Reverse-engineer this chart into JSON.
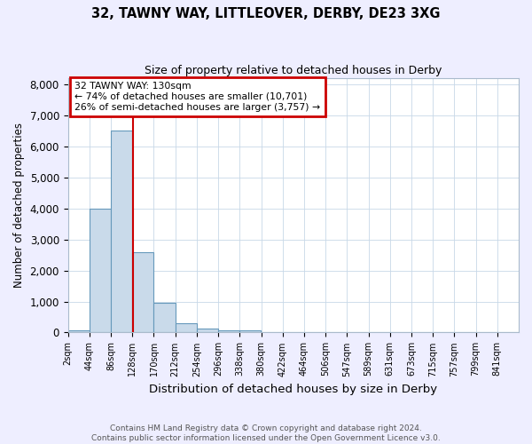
{
  "title1": "32, TAWNY WAY, LITTLEOVER, DERBY, DE23 3XG",
  "title2": "Size of property relative to detached houses in Derby",
  "xlabel": "Distribution of detached houses by size in Derby",
  "ylabel": "Number of detached properties",
  "bin_labels": [
    "2sqm",
    "44sqm",
    "86sqm",
    "128sqm",
    "170sqm",
    "212sqm",
    "254sqm",
    "296sqm",
    "338sqm",
    "380sqm",
    "422sqm",
    "464sqm",
    "506sqm",
    "547sqm",
    "589sqm",
    "631sqm",
    "673sqm",
    "715sqm",
    "757sqm",
    "799sqm",
    "841sqm"
  ],
  "bar_heights": [
    75,
    4000,
    6500,
    2600,
    950,
    310,
    120,
    80,
    60,
    0,
    0,
    0,
    0,
    0,
    0,
    0,
    0,
    0,
    0,
    0,
    0
  ],
  "bar_color": "#c9daea",
  "bar_edge_color": "#6699bb",
  "bar_edge_width": 0.8,
  "property_line_color": "#cc0000",
  "ylim": [
    0,
    8200
  ],
  "annotation_text": "32 TAWNY WAY: 130sqm\n← 74% of detached houses are smaller (10,701)\n26% of semi-detached houses are larger (3,757) →",
  "annotation_box_color": "#cc0000",
  "footnote": "Contains HM Land Registry data © Crown copyright and database right 2024.\nContains public sector information licensed under the Open Government Licence v3.0.",
  "background_color": "#eeeeff",
  "plot_background": "#ffffff",
  "bin_width": 42,
  "n_bins": 21,
  "property_sqm": 130
}
